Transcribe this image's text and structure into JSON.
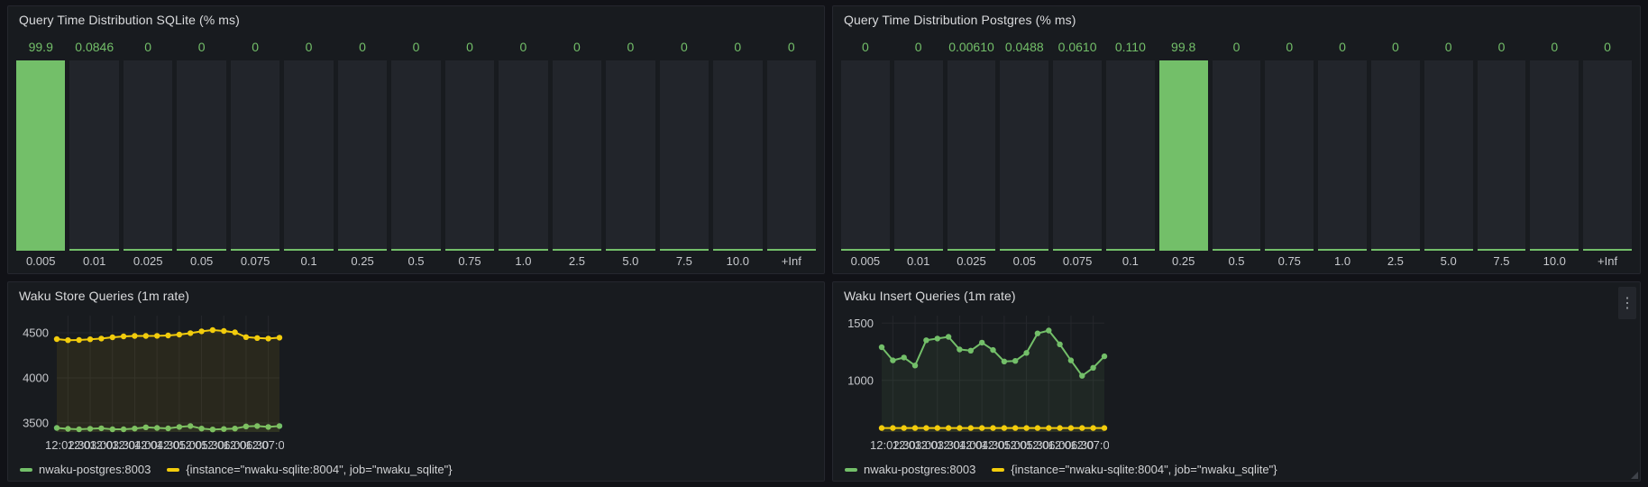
{
  "theme": {
    "bg": "#111217",
    "panel_bg": "#181b1f",
    "panel_border": "#25272e",
    "green": "#73bf69",
    "yellow": "#f2cc0c",
    "bar_bg": "#22252b",
    "title_color": "#dadbdd",
    "axis_color": "#c7c9cd",
    "grid_color": "#25272c"
  },
  "panels": [
    {
      "title": "Query Time Distribution SQLite (% ms)"
    },
    {
      "title": "Query Time Distribution Postgres (% ms)"
    },
    {
      "title": "Waku Store Queries (1m rate)"
    },
    {
      "title": "Waku Insert Queries (1m rate)"
    }
  ],
  "menu_icon": "⋮",
  "chart_data": [
    {
      "type": "bar",
      "title": "Query Time Distribution SQLite (% ms)",
      "categories": [
        "0.005",
        "0.01",
        "0.025",
        "0.05",
        "0.075",
        "0.1",
        "0.25",
        "0.5",
        "0.75",
        "1.0",
        "2.5",
        "5.0",
        "7.5",
        "10.0",
        "+Inf"
      ],
      "values": [
        99.9,
        0.0846,
        0,
        0,
        0,
        0,
        0,
        0,
        0,
        0,
        0,
        0,
        0,
        0,
        0
      ],
      "value_labels": [
        "99.9",
        "0.0846",
        "0",
        "0",
        "0",
        "0",
        "0",
        "0",
        "0",
        "0",
        "0",
        "0",
        "0",
        "0",
        "0"
      ],
      "ylim": [
        0,
        100
      ],
      "bar_color": "#73bf69"
    },
    {
      "type": "bar",
      "title": "Query Time Distribution Postgres (% ms)",
      "categories": [
        "0.005",
        "0.01",
        "0.025",
        "0.05",
        "0.075",
        "0.1",
        "0.25",
        "0.5",
        "0.75",
        "1.0",
        "2.5",
        "5.0",
        "7.5",
        "10.0",
        "+Inf"
      ],
      "values": [
        0,
        0,
        0.0061,
        0.0488,
        0.061,
        0.11,
        99.8,
        0,
        0,
        0,
        0,
        0,
        0,
        0,
        0
      ],
      "value_labels": [
        "0",
        "0",
        "0.00610",
        "0.0488",
        "0.0610",
        "0.110",
        "99.8",
        "0",
        "0",
        "0",
        "0",
        "0",
        "0",
        "0",
        "0"
      ],
      "ylim": [
        0,
        100
      ],
      "bar_color": "#73bf69"
    },
    {
      "type": "line",
      "title": "Waku Store Queries (1m rate)",
      "x_count": 21,
      "tick_indices": [
        1,
        3,
        5,
        7,
        9,
        11,
        13,
        15,
        17,
        19
      ],
      "x_tick_labels": [
        "12:02:30",
        "12:03:00",
        "12:03:30",
        "12:04:00",
        "12:04:30",
        "12:05:00",
        "12:05:30",
        "12:06:00",
        "12:06:30",
        "12:07:00"
      ],
      "yticks": [
        3500,
        4000,
        4500
      ],
      "ylim": [
        3400,
        4690
      ],
      "legend_position": "bottom",
      "grid": true,
      "series": [
        {
          "name": "nwaku-postgres:8003",
          "color": "#73bf69",
          "values": [
            3445,
            3435,
            3430,
            3436,
            3441,
            3430,
            3430,
            3438,
            3452,
            3445,
            3440,
            3456,
            3466,
            3438,
            3428,
            3433,
            3438,
            3462,
            3466,
            3456,
            3466
          ]
        },
        {
          "name": "{instance=\"nwaku-sqlite:8004\", job=\"nwaku_sqlite\"}",
          "color": "#f2cc0c",
          "values": [
            4430,
            4418,
            4420,
            4428,
            4436,
            4450,
            4460,
            4465,
            4465,
            4466,
            4470,
            4480,
            4496,
            4516,
            4530,
            4520,
            4505,
            4452,
            4442,
            4436,
            4446
          ]
        }
      ]
    },
    {
      "type": "line",
      "title": "Waku Insert Queries (1m rate)",
      "x_count": 21,
      "tick_indices": [
        1,
        3,
        5,
        7,
        9,
        11,
        13,
        15,
        17,
        19
      ],
      "x_tick_labels": [
        "12:02:30",
        "12:03:00",
        "12:03:30",
        "12:04:00",
        "12:04:30",
        "12:05:00",
        "12:05:30",
        "12:06:00",
        "12:06:30",
        "12:07:00"
      ],
      "yticks": [
        1000,
        1500
      ],
      "ylim": [
        550,
        1565
      ],
      "legend_position": "bottom",
      "grid": true,
      "series": [
        {
          "name": "nwaku-postgres:8003",
          "color": "#73bf69",
          "values": [
            1290,
            1175,
            1200,
            1130,
            1350,
            1365,
            1380,
            1270,
            1260,
            1330,
            1265,
            1165,
            1170,
            1240,
            1410,
            1435,
            1315,
            1175,
            1040,
            1110,
            1210
          ]
        },
        {
          "name": "{instance=\"nwaku-sqlite:8004\", job=\"nwaku_sqlite\"}",
          "color": "#f2cc0c",
          "values": [
            585,
            585,
            585,
            585,
            585,
            585,
            585,
            585,
            585,
            585,
            585,
            585,
            585,
            585,
            585,
            585,
            585,
            585,
            585,
            585,
            585
          ]
        }
      ]
    }
  ]
}
